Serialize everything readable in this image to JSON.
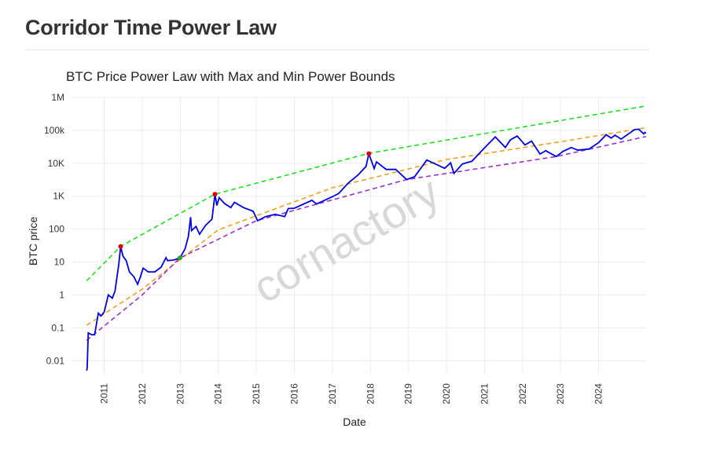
{
  "page": {
    "title": "Corridor Time Power Law"
  },
  "colors": {
    "price": "#0000dd",
    "upper_bound": "#22dd22",
    "fair_value": "#f0a020",
    "lower_bound": "#9933cc",
    "marker_top": "#dd0000",
    "marker_bottom": "#22aa22",
    "grid": "#ececec",
    "watermark": "#d8d8d8"
  },
  "chart_data": {
    "type": "line",
    "title": "BTC Price Power Law with Max and Min Power Bounds",
    "xlabel": "Date",
    "ylabel": "BTC price",
    "yscale": "log",
    "ylim": [
      0.004,
      1000000
    ],
    "xlim": [
      "2010-03-01",
      "2025-04-01"
    ],
    "grid": true,
    "legend": "none",
    "watermark": "cornactory",
    "y_ticks": [
      {
        "value": 0.01,
        "label": "0.01"
      },
      {
        "value": 0.1,
        "label": "0.1"
      },
      {
        "value": 1,
        "label": "1"
      },
      {
        "value": 10,
        "label": "10"
      },
      {
        "value": 100,
        "label": "100"
      },
      {
        "value": 1000,
        "label": "1K"
      },
      {
        "value": 10000,
        "label": "10K"
      },
      {
        "value": 100000,
        "label": "100k"
      },
      {
        "value": 1000000,
        "label": "1M"
      }
    ],
    "x_ticks": [
      {
        "date": "2011-01-01",
        "label": "2011"
      },
      {
        "date": "2012-01-01",
        "label": "2012"
      },
      {
        "date": "2013-01-01",
        "label": "2013"
      },
      {
        "date": "2014-01-01",
        "label": "2014"
      },
      {
        "date": "2015-01-01",
        "label": "2015"
      },
      {
        "date": "2016-01-01",
        "label": "2016"
      },
      {
        "date": "2017-01-01",
        "label": "2017"
      },
      {
        "date": "2018-01-01",
        "label": "2018"
      },
      {
        "date": "2019-01-01",
        "label": "2019"
      },
      {
        "date": "2020-01-01",
        "label": "2020"
      },
      {
        "date": "2021-01-01",
        "label": "2021"
      },
      {
        "date": "2022-01-01",
        "label": "2022"
      },
      {
        "date": "2023-01-01",
        "label": "2023"
      },
      {
        "date": "2024-01-01",
        "label": "2024"
      }
    ],
    "series": [
      {
        "key": "price",
        "style": "solid",
        "points": [
          [
            "2010-07-17",
            0.005
          ],
          [
            "2010-07-22",
            0.006
          ],
          [
            "2010-08-01",
            0.07
          ],
          [
            "2010-09-01",
            0.062
          ],
          [
            "2010-10-01",
            0.062
          ],
          [
            "2010-11-06",
            0.28
          ],
          [
            "2010-12-01",
            0.23
          ],
          [
            "2011-01-01",
            0.3
          ],
          [
            "2011-02-10",
            1.0
          ],
          [
            "2011-03-20",
            0.8
          ],
          [
            "2011-04-15",
            1.3
          ],
          [
            "2011-05-20",
            8.0
          ],
          [
            "2011-06-08",
            29.6
          ],
          [
            "2011-07-01",
            15.0
          ],
          [
            "2011-08-01",
            11.0
          ],
          [
            "2011-09-01",
            5.0
          ],
          [
            "2011-10-15",
            3.5
          ],
          [
            "2011-11-18",
            2.1
          ],
          [
            "2011-12-15",
            3.5
          ],
          [
            "2012-01-10",
            6.5
          ],
          [
            "2012-03-01",
            5.0
          ],
          [
            "2012-05-01",
            5.0
          ],
          [
            "2012-07-01",
            7.0
          ],
          [
            "2012-08-17",
            13.5
          ],
          [
            "2012-09-01",
            11.0
          ],
          [
            "2012-11-01",
            11.5
          ],
          [
            "2012-12-28",
            13.3
          ],
          [
            "2013-02-15",
            25.0
          ],
          [
            "2013-03-20",
            60.0
          ],
          [
            "2013-04-10",
            230.0
          ],
          [
            "2013-04-20",
            90.0
          ],
          [
            "2013-06-01",
            120.0
          ],
          [
            "2013-07-05",
            70.0
          ],
          [
            "2013-09-01",
            130.0
          ],
          [
            "2013-11-01",
            200.0
          ],
          [
            "2013-11-30",
            1150.0
          ],
          [
            "2013-12-18",
            520.0
          ],
          [
            "2014-01-10",
            900.0
          ],
          [
            "2014-03-01",
            600.0
          ],
          [
            "2014-05-01",
            450.0
          ],
          [
            "2014-06-05",
            650.0
          ],
          [
            "2014-09-01",
            450.0
          ],
          [
            "2014-12-01",
            350.0
          ],
          [
            "2015-01-14",
            180.0
          ],
          [
            "2015-04-01",
            240.0
          ],
          [
            "2015-07-01",
            280.0
          ],
          [
            "2015-10-01",
            240.0
          ],
          [
            "2015-11-04",
            420.0
          ],
          [
            "2016-01-01",
            430.0
          ],
          [
            "2016-06-18",
            750.0
          ],
          [
            "2016-08-01",
            580.0
          ],
          [
            "2016-12-31",
            960.0
          ],
          [
            "2017-03-01",
            1200.0
          ],
          [
            "2017-06-01",
            2500.0
          ],
          [
            "2017-09-01",
            4300.0
          ],
          [
            "2017-11-20",
            8000.0
          ],
          [
            "2017-12-17",
            19500.0
          ],
          [
            "2018-02-06",
            6900.0
          ],
          [
            "2018-03-01",
            11000.0
          ],
          [
            "2018-06-01",
            6500.0
          ],
          [
            "2018-09-01",
            6500.0
          ],
          [
            "2018-12-15",
            3200.0
          ],
          [
            "2019-03-01",
            3900.0
          ],
          [
            "2019-06-26",
            12500.0
          ],
          [
            "2019-09-01",
            10000.0
          ],
          [
            "2019-12-15",
            7000.0
          ],
          [
            "2020-02-10",
            10300.0
          ],
          [
            "2020-03-13",
            4900.0
          ],
          [
            "2020-06-01",
            9500.0
          ],
          [
            "2020-09-01",
            11500.0
          ],
          [
            "2020-12-31",
            29000.0
          ],
          [
            "2021-04-14",
            63000.0
          ],
          [
            "2021-07-20",
            30000.0
          ],
          [
            "2021-09-05",
            51000.0
          ],
          [
            "2021-11-10",
            67000.0
          ],
          [
            "2022-01-24",
            36000.0
          ],
          [
            "2022-03-28",
            47000.0
          ],
          [
            "2022-06-18",
            19000.0
          ],
          [
            "2022-08-12",
            24000.0
          ],
          [
            "2022-11-21",
            16000.0
          ],
          [
            "2023-01-25",
            23000.0
          ],
          [
            "2023-04-14",
            30000.0
          ],
          [
            "2023-06-15",
            25000.0
          ],
          [
            "2023-10-01",
            27000.0
          ],
          [
            "2023-12-31",
            42000.0
          ],
          [
            "2024-03-14",
            73000.0
          ],
          [
            "2024-05-01",
            58000.0
          ],
          [
            "2024-06-07",
            71000.0
          ],
          [
            "2024-08-05",
            54000.0
          ],
          [
            "2024-11-20",
            94000.0
          ],
          [
            "2024-12-17",
            106000.0
          ],
          [
            "2025-01-20",
            108000.0
          ],
          [
            "2025-02-27",
            84000.0
          ],
          [
            "2025-03-10",
            78000.0
          ],
          [
            "2025-03-20",
            86000.0
          ],
          [
            "2025-03-31",
            82000.0
          ]
        ]
      },
      {
        "key": "upper_bound",
        "style": "dashed",
        "points": [
          [
            "2010-07-17",
            2.7
          ],
          [
            "2011-06-08",
            30.0
          ],
          [
            "2013-11-30",
            1150.0
          ],
          [
            "2017-12-17",
            20000.0
          ],
          [
            "2025-03-31",
            550000.0
          ]
        ]
      },
      {
        "key": "fair_value",
        "style": "dashed",
        "points": [
          [
            "2010-07-17",
            0.12
          ],
          [
            "2012-01-01",
            1.5
          ],
          [
            "2014-01-01",
            95.0
          ],
          [
            "2017-01-01",
            1800.0
          ],
          [
            "2020-01-01",
            13000.0
          ],
          [
            "2023-01-01",
            45000.0
          ],
          [
            "2025-03-31",
            120000.0
          ]
        ]
      },
      {
        "key": "lower_bound",
        "style": "dashed",
        "points": [
          [
            "2010-07-17",
            0.042
          ],
          [
            "2012-01-01",
            1.0
          ],
          [
            "2012-12-28",
            13.3
          ],
          [
            "2015-01-01",
            180.0
          ],
          [
            "2018-12-15",
            3200.0
          ],
          [
            "2022-11-21",
            16000.0
          ],
          [
            "2025-03-31",
            65000.0
          ]
        ]
      }
    ],
    "markers": [
      {
        "date": "2011-06-08",
        "value": 29.6,
        "kind": "top"
      },
      {
        "date": "2013-11-30",
        "value": 1150.0,
        "kind": "top"
      },
      {
        "date": "2017-12-17",
        "value": 19500.0,
        "kind": "top"
      },
      {
        "date": "2012-12-28",
        "value": 13.3,
        "kind": "bottom"
      }
    ]
  }
}
